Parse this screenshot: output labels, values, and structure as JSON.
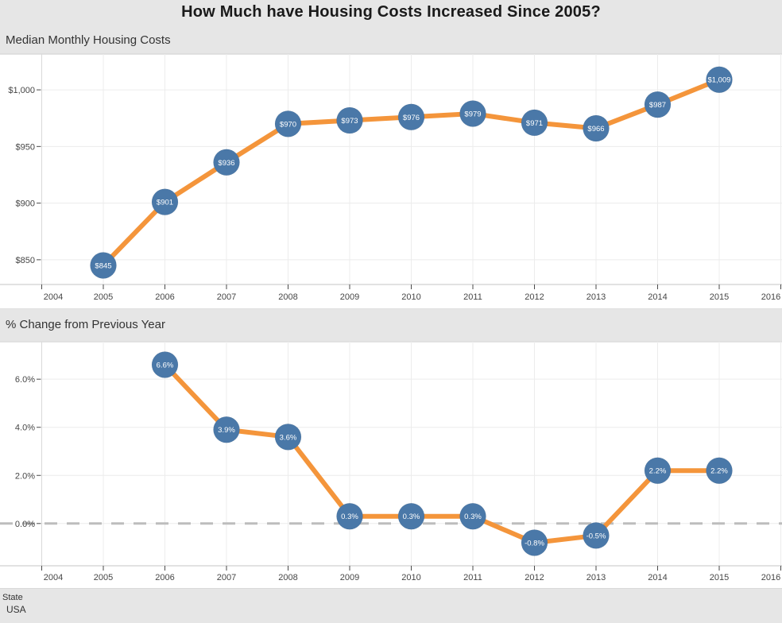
{
  "page": {
    "title": "How Much have Housing Costs Increased Since 2005?"
  },
  "x_axis_years": [
    "2004",
    "2005",
    "2006",
    "2007",
    "2008",
    "2009",
    "2010",
    "2011",
    "2012",
    "2013",
    "2014",
    "2015",
    "2016"
  ],
  "filter": {
    "label": "State",
    "value": "USA"
  },
  "colors": {
    "line": "#f4953b",
    "marker": "#4a78a8",
    "marker_text": "#ffffff",
    "strip_bg": "#e6e6e6",
    "gridline": "#ececec",
    "axis_line": "#c6c6c6",
    "left_axis_line": "#d9d9d9",
    "tick": "#4a4a4a",
    "tick_text": "#464646",
    "zero_line": "#bdbdbd"
  },
  "chart_data": [
    {
      "type": "line",
      "title": "Median Monthly Housing Costs",
      "series_label": "Median monthly housing costs (USD)",
      "x": [
        2005,
        2006,
        2007,
        2008,
        2009,
        2010,
        2011,
        2012,
        2013,
        2014,
        2015
      ],
      "y": [
        845,
        901,
        936,
        970,
        973,
        976,
        979,
        971,
        966,
        987,
        1009
      ],
      "point_labels": [
        "$845",
        "$901",
        "$936",
        "$970",
        "$973",
        "$976",
        "$979",
        "$971",
        "$966",
        "$987",
        "$1,009"
      ],
      "y_ticks": {
        "values": [
          850,
          900,
          950,
          1000
        ],
        "labels": [
          "$850",
          "$900",
          "$950",
          "$1,000"
        ]
      },
      "xlim": [
        2004,
        2016
      ],
      "ylim": [
        828,
        1032
      ],
      "grid": true,
      "zero_line": false,
      "legend": "none"
    },
    {
      "type": "line",
      "title": "% Change from Previous Year",
      "series_label": "% change from previous year",
      "x": [
        2006,
        2007,
        2008,
        2009,
        2010,
        2011,
        2012,
        2013,
        2014,
        2015
      ],
      "y": [
        6.6,
        3.9,
        3.6,
        0.3,
        0.3,
        0.3,
        -0.8,
        -0.5,
        2.2,
        2.2
      ],
      "point_labels": [
        "6.6%",
        "3.9%",
        "3.6%",
        "0.3%",
        "0.3%",
        "0.3%",
        "-0.8%",
        "-0.5%",
        "2.2%",
        "2.2%"
      ],
      "y_ticks": {
        "values": [
          0,
          2,
          4,
          6
        ],
        "labels": [
          "0.0%",
          "2.0%",
          "4.0%",
          "6.0%"
        ]
      },
      "xlim": [
        2004,
        2016
      ],
      "ylim": [
        -1.8,
        7.6
      ],
      "grid": true,
      "zero_line": true,
      "legend": "none"
    }
  ]
}
